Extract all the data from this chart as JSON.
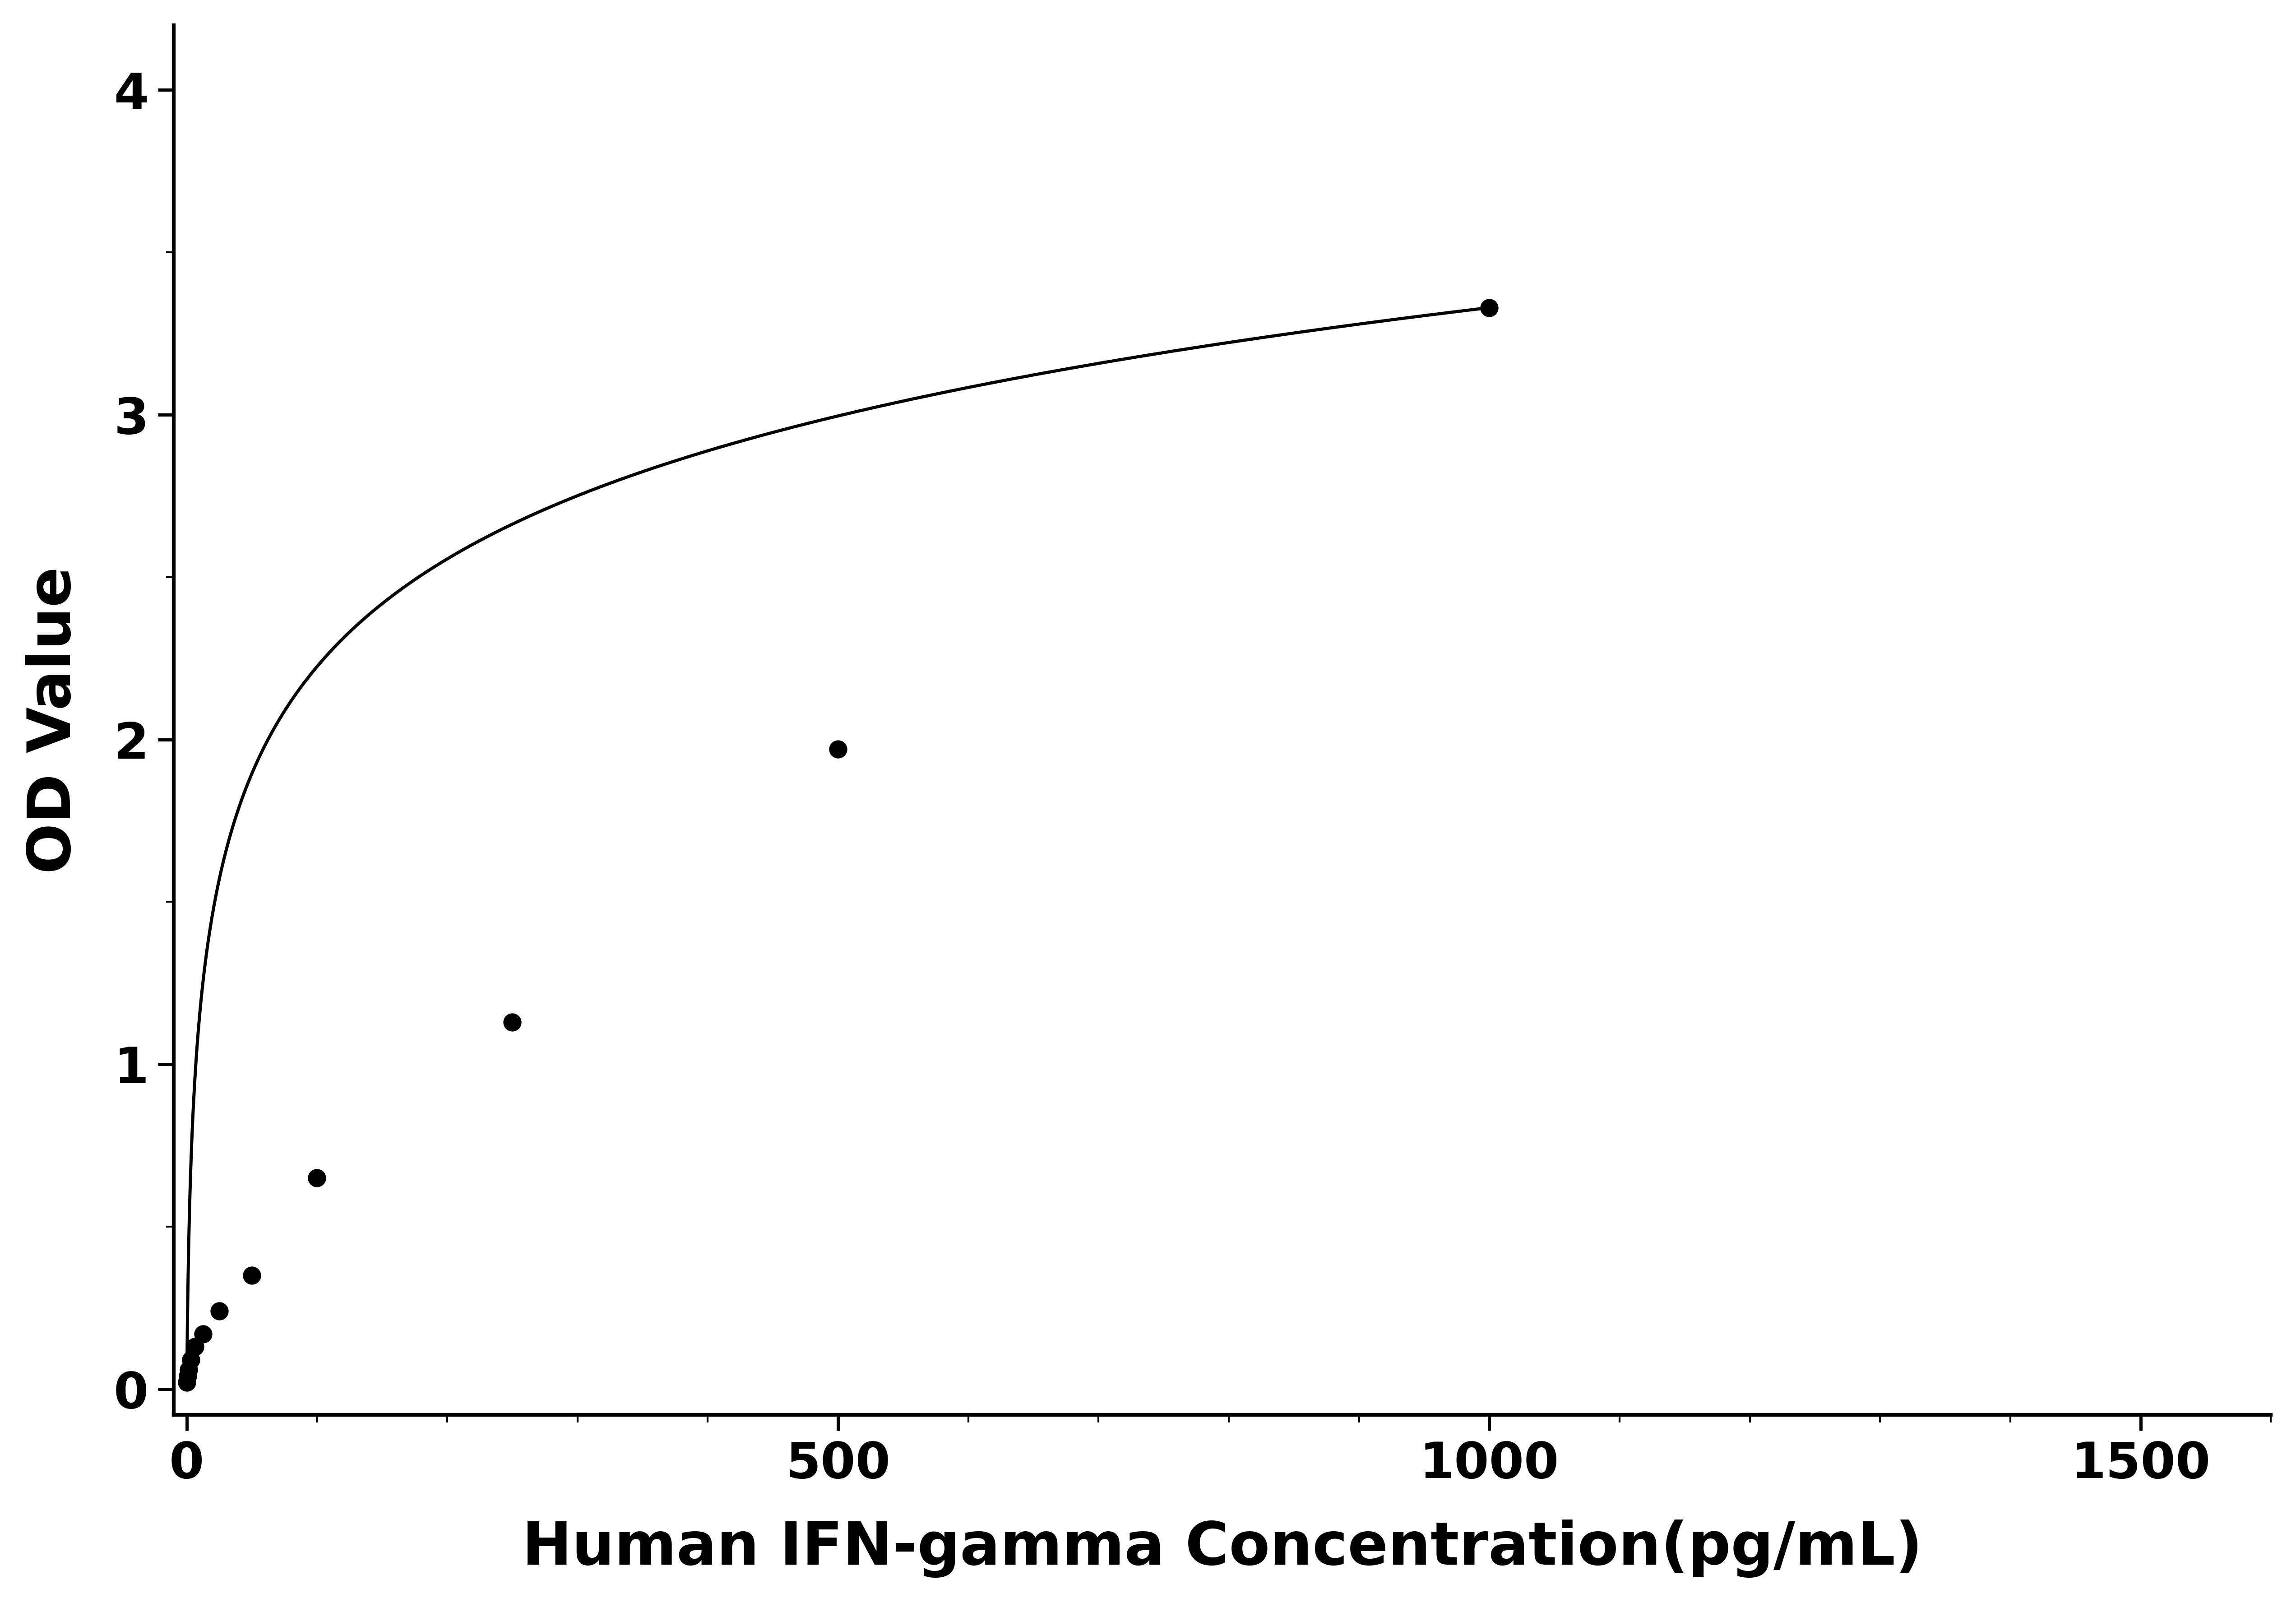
{
  "x_data": [
    0,
    0.78,
    1.563,
    3.125,
    6.25,
    12.5,
    25,
    50,
    100,
    250,
    500,
    1000
  ],
  "y_data": [
    0.02,
    0.04,
    0.06,
    0.09,
    0.13,
    0.17,
    0.24,
    0.35,
    0.65,
    1.13,
    1.97,
    3.33
  ],
  "xlabel": "Human IFN-gamma Concentration(pg/mL)",
  "ylabel": "OD Value",
  "xlim": [
    -10,
    1600
  ],
  "ylim": [
    -0.08,
    4.2
  ],
  "xticks": [
    0,
    500,
    1000,
    1500
  ],
  "yticks": [
    0,
    1,
    2,
    3,
    4
  ],
  "marker_color": "#000000",
  "line_color": "#000000",
  "marker_size": 28,
  "line_width": 5,
  "xlabel_fontsize": 95,
  "ylabel_fontsize": 95,
  "tick_fontsize": 80,
  "background_color": "#ffffff",
  "spine_linewidth": 6
}
